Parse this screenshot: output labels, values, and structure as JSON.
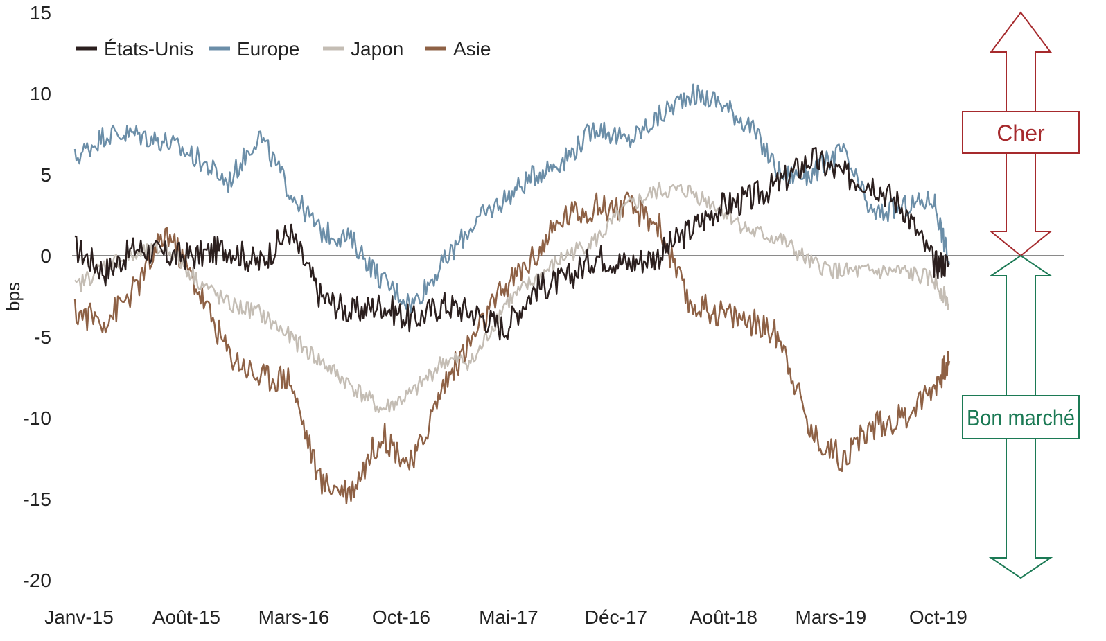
{
  "chart_data": {
    "type": "line",
    "title": "",
    "xlabel": "",
    "ylabel": "bps",
    "ylim": [
      -20,
      15
    ],
    "yticks": [
      "15",
      "10",
      "5",
      "0",
      "-5",
      "-10",
      "-15",
      "-20"
    ],
    "xticks": [
      "Janv-15",
      "Août-15",
      "Mars-16",
      "Oct-16",
      "Mai-17",
      "Déc-17",
      "Août-18",
      "Mars-19",
      "Oct-19"
    ],
    "legend_position": "top-left",
    "grid": false,
    "x": [
      "2015-01",
      "2015-03",
      "2015-05",
      "2015-07",
      "2015-09",
      "2015-11",
      "2016-01",
      "2016-03",
      "2016-05",
      "2016-07",
      "2016-09",
      "2016-11",
      "2017-01",
      "2017-03",
      "2017-05",
      "2017-07",
      "2017-09",
      "2017-11",
      "2018-01",
      "2018-03",
      "2018-05",
      "2018-07",
      "2018-09",
      "2018-11",
      "2019-01",
      "2019-03",
      "2019-05",
      "2019-07",
      "2019-09",
      "2019-10"
    ],
    "series": [
      {
        "name": "États-Unis",
        "color": "#2b1f1e",
        "values": [
          0.5,
          -1.0,
          0.5,
          0.0,
          0.0,
          0.5,
          -0.5,
          1.5,
          -2.5,
          -3.5,
          -3.0,
          -4.0,
          -3.0,
          -3.5,
          -4.5,
          -2.0,
          -1.5,
          0.0,
          -0.5,
          0.0,
          1.5,
          3.0,
          3.5,
          4.5,
          6.0,
          5.0,
          4.5,
          3.0,
          -0.5,
          -0.5
        ]
      },
      {
        "name": "Europe",
        "color": "#6b8ea8",
        "values": [
          6.0,
          7.5,
          7.5,
          7.0,
          6.0,
          4.5,
          7.5,
          4.0,
          1.5,
          1.0,
          -1.5,
          -3.0,
          -0.5,
          2.0,
          3.5,
          5.0,
          6.0,
          8.0,
          7.0,
          8.5,
          10.0,
          9.5,
          8.0,
          5.0,
          5.0,
          6.5,
          2.5,
          3.0,
          3.5,
          -0.5
        ]
      },
      {
        "name": "Japon",
        "color": "#c4bdb4",
        "values": [
          -2.0,
          -0.5,
          0.0,
          0.5,
          -1.5,
          -3.0,
          -3.5,
          -5.0,
          -6.5,
          -8.0,
          -9.5,
          -8.5,
          -6.5,
          -6.5,
          -3.0,
          -1.5,
          0.0,
          1.0,
          3.0,
          4.0,
          4.0,
          3.0,
          1.5,
          1.0,
          -0.5,
          -1.0,
          -1.0,
          -1.0,
          -1.5,
          -3.0
        ]
      },
      {
        "name": "Asie",
        "color": "#8e6145",
        "values": [
          -3.5,
          -4.0,
          -2.0,
          1.5,
          -2.0,
          -6.0,
          -7.5,
          -7.5,
          -14.0,
          -14.5,
          -11.0,
          -13.0,
          -8.0,
          -5.0,
          -2.0,
          0.0,
          2.5,
          3.0,
          3.0,
          2.0,
          -3.0,
          -3.5,
          -4.0,
          -5.0,
          -11.0,
          -12.5,
          -10.5,
          -10.0,
          -8.0,
          -6.5
        ]
      }
    ],
    "annotations": {
      "expensive_label": "Cher",
      "cheap_label": "Bon marché",
      "expensive_color": "#a62a2d",
      "cheap_color": "#1c7a55"
    }
  }
}
